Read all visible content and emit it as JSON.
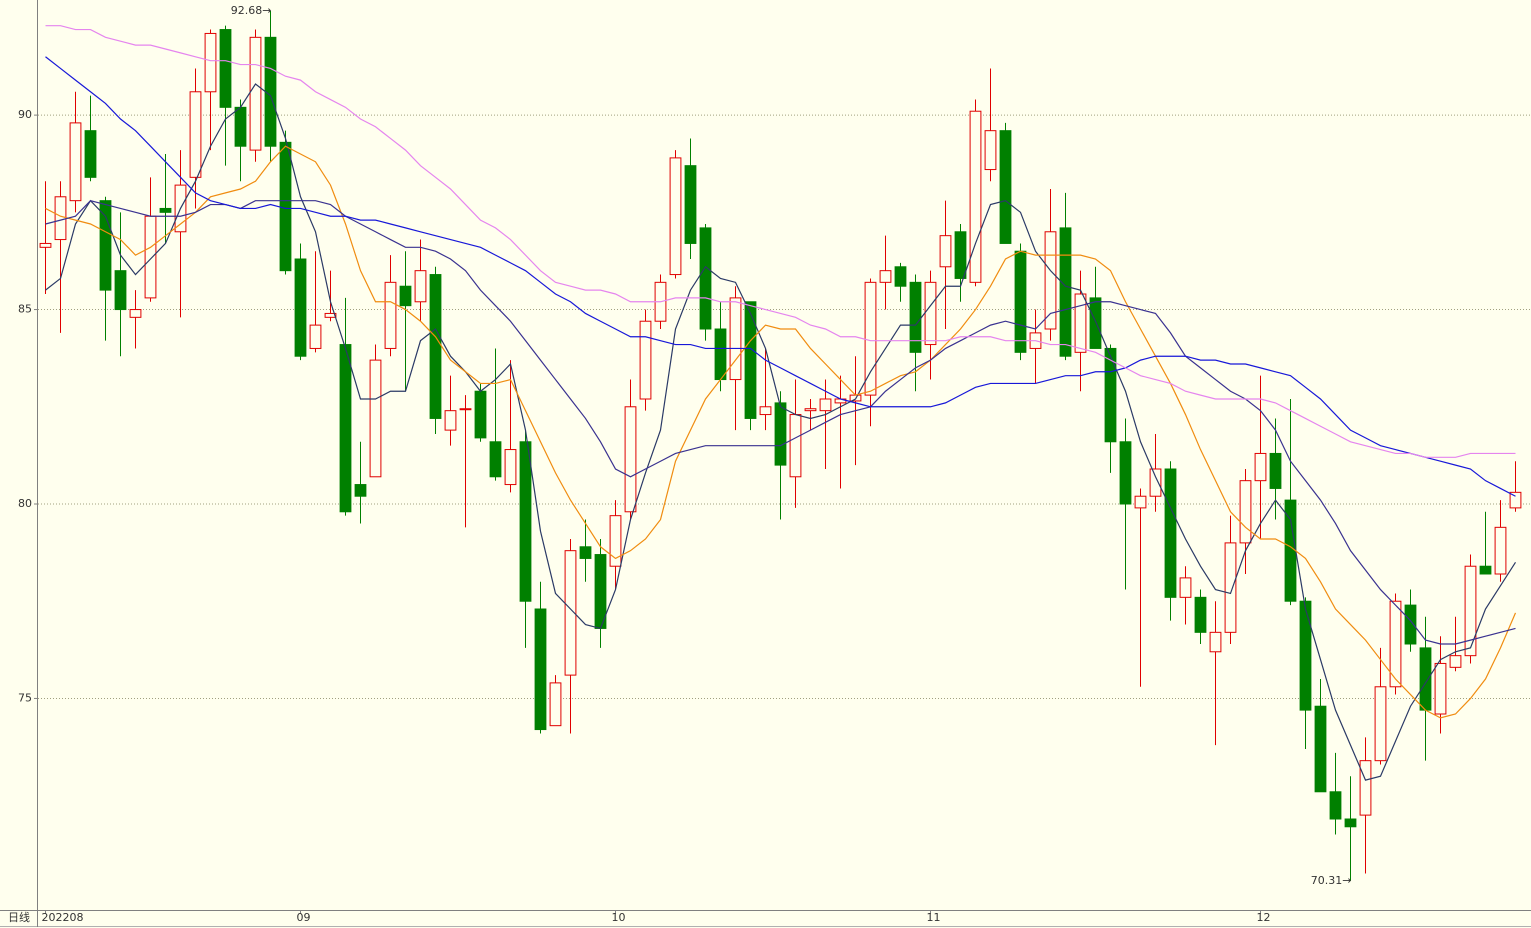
{
  "chart_data": {
    "type": "candlestick",
    "period": "日线",
    "categories": [
      "202208",
      null,
      null,
      null,
      null,
      null,
      null,
      null,
      null,
      null,
      null,
      null,
      null,
      null,
      null,
      null,
      null,
      "09",
      null,
      null,
      null,
      null,
      null,
      null,
      null,
      null,
      null,
      null,
      null,
      null,
      null,
      null,
      null,
      null,
      null,
      null,
      null,
      null,
      "10",
      null,
      null,
      null,
      null,
      null,
      null,
      null,
      null,
      null,
      null,
      null,
      null,
      null,
      null,
      null,
      null,
      null,
      null,
      null,
      null,
      "11",
      null,
      null,
      null,
      null,
      null,
      null,
      null,
      null,
      null,
      null,
      null,
      null,
      null,
      null,
      null,
      null,
      null,
      null,
      null,
      null,
      null,
      "12",
      null,
      null,
      null,
      null,
      null,
      null,
      null,
      null,
      null,
      null,
      null,
      null,
      null,
      null,
      null,
      null,
      null
    ],
    "open": [
      86.6,
      86.8,
      87.8,
      89.6,
      87.8,
      86.0,
      84.8,
      85.3,
      87.6,
      87.0,
      88.4,
      90.6,
      92.2,
      90.2,
      89.1,
      92.0,
      89.3,
      86.3,
      84.0,
      84.8,
      84.1,
      80.5,
      80.7,
      84.0,
      85.6,
      85.2,
      85.9,
      81.9,
      82.45,
      82.9,
      81.6,
      80.5,
      81.6,
      77.3,
      74.3,
      75.6,
      78.9,
      78.7,
      78.4,
      79.8,
      82.7,
      84.7,
      85.9,
      88.7,
      87.1,
      84.5,
      83.2,
      85.2,
      82.3,
      82.6,
      80.7,
      82.4,
      82.4,
      82.6,
      82.65,
      82.8,
      85.7,
      86.1,
      85.7,
      84.1,
      86.1,
      87.0,
      85.7,
      88.6,
      89.6,
      86.5,
      84.0,
      84.5,
      87.1,
      83.9,
      85.3,
      84.0,
      81.6,
      79.9,
      80.2,
      80.9,
      77.6,
      77.6,
      76.2,
      76.7,
      79.0,
      80.6,
      81.3,
      80.1,
      77.5,
      74.8,
      72.6,
      71.9,
      72.0,
      73.4,
      75.3,
      77.4,
      76.3,
      74.6,
      75.8,
      76.1,
      78.4,
      78.2,
      79.9
    ],
    "high": [
      88.3,
      88.3,
      90.6,
      90.5,
      87.9,
      87.5,
      85.5,
      88.4,
      89.0,
      89.1,
      91.2,
      92.2,
      92.3,
      90.4,
      92.2,
      92.68,
      89.6,
      86.7,
      86.5,
      86.0,
      85.3,
      81.6,
      84.1,
      86.4,
      86.5,
      86.8,
      86.1,
      83.3,
      82.8,
      83.1,
      84.0,
      83.7,
      81.9,
      78.0,
      75.6,
      79.1,
      79.6,
      79.1,
      80.1,
      83.2,
      85.0,
      85.9,
      89.1,
      89.4,
      87.2,
      85.2,
      85.6,
      85.2,
      84.0,
      82.9,
      83.2,
      82.7,
      83.2,
      83.3,
      83.8,
      85.8,
      86.9,
      86.2,
      85.9,
      86.0,
      87.8,
      87.2,
      90.4,
      91.2,
      89.8,
      86.7,
      85.0,
      88.1,
      88.0,
      86.0,
      86.1,
      84.1,
      82.2,
      80.4,
      81.8,
      81.1,
      78.4,
      77.8,
      77.5,
      79.7,
      80.9,
      83.3,
      82.2,
      82.7,
      77.6,
      75.5,
      73.6,
      73.0,
      74.0,
      76.3,
      77.7,
      77.8,
      77.1,
      76.6,
      77.1,
      78.7,
      79.8,
      80.1,
      81.1
    ],
    "low": [
      85.4,
      84.4,
      87.5,
      88.3,
      84.2,
      83.8,
      84.0,
      85.2,
      86.7,
      84.8,
      87.6,
      89.1,
      88.7,
      88.3,
      88.8,
      88.8,
      85.9,
      83.7,
      83.9,
      84.7,
      79.7,
      79.5,
      80.7,
      83.8,
      82.9,
      84.7,
      81.8,
      81.5,
      79.4,
      81.6,
      80.6,
      80.3,
      76.3,
      74.1,
      74.3,
      74.1,
      78.0,
      76.3,
      77.8,
      79.6,
      82.4,
      84.5,
      85.8,
      86.3,
      84.2,
      82.9,
      81.9,
      81.9,
      81.9,
      79.6,
      79.9,
      81.9,
      80.9,
      80.4,
      81.0,
      82.0,
      85.0,
      85.2,
      82.9,
      83.2,
      84.5,
      85.2,
      85.6,
      88.3,
      86.7,
      83.7,
      83.1,
      84.2,
      83.7,
      82.9,
      84.0,
      80.8,
      77.8,
      75.3,
      79.8,
      77.0,
      76.9,
      76.4,
      73.8,
      76.4,
      78.2,
      79.1,
      79.6,
      77.4,
      73.7,
      72.6,
      71.5,
      70.31,
      70.5,
      73.3,
      75.1,
      76.2,
      73.4,
      74.1,
      75.7,
      75.9,
      78.2,
      78.0,
      79.8
    ],
    "close": [
      86.7,
      87.9,
      89.8,
      88.4,
      85.5,
      85.0,
      85.0,
      87.4,
      87.5,
      88.2,
      90.6,
      92.1,
      90.2,
      89.2,
      92.0,
      89.2,
      86.0,
      83.8,
      84.6,
      84.9,
      79.8,
      80.2,
      83.7,
      85.7,
      85.1,
      86.0,
      82.2,
      82.4,
      82.45,
      81.7,
      80.7,
      81.4,
      77.5,
      74.2,
      75.4,
      78.8,
      78.6,
      76.8,
      79.7,
      82.5,
      84.7,
      85.7,
      88.9,
      86.7,
      84.5,
      83.2,
      85.3,
      82.2,
      82.5,
      81.0,
      82.3,
      82.45,
      82.7,
      82.7,
      82.8,
      85.7,
      86.0,
      85.6,
      83.9,
      85.7,
      86.9,
      85.8,
      90.1,
      89.6,
      86.7,
      83.9,
      84.4,
      87.0,
      83.8,
      85.4,
      84.0,
      81.6,
      80.0,
      80.2,
      80.9,
      77.6,
      78.1,
      76.7,
      76.7,
      79.0,
      80.6,
      81.3,
      80.4,
      77.5,
      74.7,
      72.6,
      71.9,
      71.7,
      73.4,
      75.3,
      77.5,
      76.4,
      74.7,
      75.9,
      76.1,
      78.4,
      78.2,
      79.4,
      80.3
    ],
    "up_color": "#e00000",
    "down_color": "#008000",
    "series": [
      {
        "color": "#2b3a66",
        "values": [
          85.5,
          85.8,
          87.2,
          87.8,
          87.4,
          86.4,
          85.9,
          86.3,
          86.7,
          87.6,
          88.3,
          89.2,
          89.9,
          90.2,
          90.8,
          90.5,
          89.4,
          87.9,
          87.0,
          85.2,
          84.0,
          82.7,
          82.7,
          82.9,
          82.9,
          84.2,
          84.5,
          83.8,
          83.4,
          82.9,
          83.2,
          83.6,
          81.9,
          79.3,
          77.7,
          77.3,
          76.9,
          76.8,
          77.8,
          79.6,
          80.8,
          81.9,
          84.5,
          85.5,
          86.1,
          85.8,
          85.7,
          84.9,
          84.0,
          82.5,
          82.3,
          82.2,
          82.3,
          82.5,
          82.7,
          83.4,
          84.0,
          84.6,
          84.6,
          85.1,
          85.6,
          85.6,
          86.7,
          87.7,
          87.8,
          87.5,
          86.5,
          86.0,
          85.6,
          85.5,
          84.7,
          83.8,
          82.9,
          81.6,
          80.7,
          79.9,
          79.1,
          78.4,
          77.8,
          77.7,
          78.8,
          79.5,
          80.1,
          79.6,
          77.3,
          76.0,
          74.7,
          73.8,
          72.9,
          73.0,
          73.9,
          74.8,
          75.4,
          76.0,
          76.2,
          76.3,
          77.3,
          77.9,
          78.5
        ]
      },
      {
        "color": "#f08c10",
        "values": [
          87.6,
          87.4,
          87.3,
          87.2,
          87.0,
          86.8,
          86.4,
          86.6,
          86.9,
          87.2,
          87.5,
          87.9,
          88.0,
          88.1,
          88.3,
          88.8,
          89.2,
          89.0,
          88.8,
          88.2,
          87.2,
          86.0,
          85.2,
          85.2,
          85.0,
          84.7,
          84.3,
          83.7,
          83.4,
          83.1,
          83.1,
          83.2,
          82.4,
          81.6,
          80.8,
          80.1,
          79.5,
          78.9,
          78.6,
          78.8,
          79.1,
          79.6,
          81.1,
          81.9,
          82.7,
          83.2,
          83.7,
          84.2,
          84.6,
          84.5,
          84.5,
          84.0,
          83.6,
          83.2,
          82.8,
          82.9,
          83.1,
          83.3,
          83.4,
          83.7,
          84.1,
          84.5,
          85.0,
          85.6,
          86.3,
          86.5,
          86.4,
          86.4,
          86.4,
          86.4,
          86.3,
          86.0,
          85.2,
          84.5,
          83.8,
          83.1,
          82.3,
          81.4,
          80.6,
          79.8,
          79.4,
          79.1,
          79.1,
          78.9,
          78.6,
          78.0,
          77.3,
          76.9,
          76.5,
          76.0,
          75.5,
          75.1,
          74.7,
          74.5,
          74.6,
          75.0,
          75.5,
          76.3,
          77.2
        ]
      },
      {
        "color": "#3a3290",
        "values": [
          87.2,
          87.3,
          87.4,
          87.8,
          87.7,
          87.6,
          87.5,
          87.4,
          87.4,
          87.4,
          87.5,
          87.7,
          87.7,
          87.6,
          87.8,
          87.8,
          87.8,
          87.8,
          87.8,
          87.7,
          87.4,
          87.2,
          87.0,
          86.8,
          86.6,
          86.6,
          86.5,
          86.3,
          86.0,
          85.5,
          85.1,
          84.7,
          84.2,
          83.7,
          83.2,
          82.7,
          82.2,
          81.6,
          80.9,
          80.7,
          80.9,
          81.1,
          81.3,
          81.4,
          81.5,
          81.5,
          81.5,
          81.5,
          81.5,
          81.5,
          81.7,
          81.9,
          82.1,
          82.3,
          82.4,
          82.5,
          82.9,
          83.2,
          83.5,
          83.7,
          84.0,
          84.2,
          84.4,
          84.6,
          84.7,
          84.6,
          84.5,
          84.9,
          85.0,
          85.1,
          85.2,
          85.2,
          85.1,
          85.0,
          84.9,
          84.4,
          83.8,
          83.5,
          83.2,
          82.9,
          82.7,
          82.4,
          81.9,
          81.1,
          80.6,
          80.1,
          79.5,
          78.8,
          78.3,
          77.8,
          77.4,
          77.0,
          76.5,
          76.4,
          76.4,
          76.5,
          76.6,
          76.7,
          76.8
        ]
      },
      {
        "color": "#1818d8",
        "values": [
          91.5,
          91.2,
          90.9,
          90.6,
          90.3,
          89.9,
          89.6,
          89.2,
          88.8,
          88.4,
          88.0,
          87.8,
          87.7,
          87.6,
          87.6,
          87.7,
          87.6,
          87.6,
          87.5,
          87.4,
          87.4,
          87.3,
          87.3,
          87.2,
          87.1,
          87.0,
          86.9,
          86.8,
          86.7,
          86.6,
          86.4,
          86.2,
          86.0,
          85.7,
          85.4,
          85.2,
          84.9,
          84.7,
          84.5,
          84.3,
          84.3,
          84.2,
          84.1,
          84.1,
          84.0,
          84.0,
          84.0,
          84.0,
          83.7,
          83.5,
          83.3,
          83.1,
          82.9,
          82.7,
          82.6,
          82.5,
          82.5,
          82.5,
          82.5,
          82.5,
          82.6,
          82.8,
          83.0,
          83.1,
          83.1,
          83.1,
          83.1,
          83.2,
          83.3,
          83.3,
          83.4,
          83.4,
          83.5,
          83.7,
          83.8,
          83.8,
          83.8,
          83.7,
          83.7,
          83.6,
          83.6,
          83.5,
          83.4,
          83.3,
          83.0,
          82.7,
          82.3,
          81.9,
          81.7,
          81.5,
          81.4,
          81.3,
          81.2,
          81.1,
          81.0,
          80.9,
          80.6,
          80.4,
          80.2
        ]
      },
      {
        "color": "#e585ee",
        "values": [
          92.3,
          92.3,
          92.2,
          92.2,
          92.0,
          91.9,
          91.8,
          91.8,
          91.7,
          91.6,
          91.5,
          91.4,
          91.4,
          91.3,
          91.3,
          91.2,
          91.0,
          90.9,
          90.6,
          90.4,
          90.2,
          89.9,
          89.7,
          89.4,
          89.1,
          88.7,
          88.4,
          88.1,
          87.7,
          87.3,
          87.1,
          86.8,
          86.4,
          86.0,
          85.7,
          85.6,
          85.5,
          85.5,
          85.4,
          85.2,
          85.2,
          85.2,
          85.3,
          85.3,
          85.3,
          85.2,
          85.2,
          85.1,
          85.0,
          84.9,
          84.8,
          84.6,
          84.5,
          84.3,
          84.3,
          84.2,
          84.2,
          84.2,
          84.2,
          84.2,
          84.2,
          84.3,
          84.3,
          84.3,
          84.2,
          84.2,
          84.2,
          84.1,
          84.1,
          84.0,
          83.9,
          83.7,
          83.5,
          83.3,
          83.2,
          83.1,
          82.9,
          82.8,
          82.7,
          82.7,
          82.7,
          82.7,
          82.6,
          82.4,
          82.2,
          82.0,
          81.8,
          81.6,
          81.5,
          81.4,
          81.3,
          81.3,
          81.2,
          81.2,
          81.2,
          81.3,
          81.3,
          81.3,
          81.3
        ]
      }
    ],
    "annotations": [
      {
        "value": 92.68,
        "label": "92.68→"
      },
      {
        "value": 70.31,
        "label": "70.31→"
      }
    ],
    "ylim": [
      69.56,
      92.96
    ],
    "yticks": [
      75,
      80,
      85,
      90
    ],
    "grid": true
  }
}
